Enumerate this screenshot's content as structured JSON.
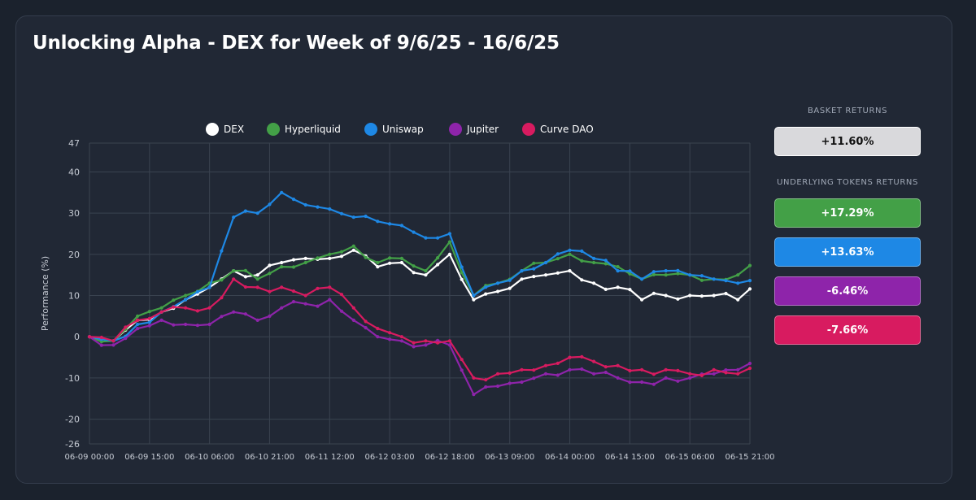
{
  "title": "Unlocking Alpha - DEX for Week of 9/6/25 - 16/6/25",
  "sidebar": {
    "basket_label": "BASKET RETURNS",
    "basket_value": "+11.60%",
    "basket_color": "#d9d9dc",
    "tokens_label": "UNDERLYING TOKENS RETURNS",
    "tokens": [
      {
        "name": "Hyperliquid",
        "value": "+17.29%",
        "color": "#43a047"
      },
      {
        "name": "Uniswap",
        "value": "+13.63%",
        "color": "#1e88e5"
      },
      {
        "name": "Jupiter",
        "value": "-6.46%",
        "color": "#8e24aa"
      },
      {
        "name": "Curve DAO",
        "value": "-7.66%",
        "color": "#d81b60"
      }
    ]
  },
  "chart_data": {
    "type": "line",
    "title": "",
    "xlabel": "",
    "ylabel": "Performance (%)",
    "ylim": [
      -26,
      47
    ],
    "yticks": [
      47,
      40,
      30,
      20,
      10,
      0,
      -10,
      -20,
      -26
    ],
    "xlim": [
      "06-09 00:00",
      "06-15 21:00"
    ],
    "xticks": [
      "06-09 00:00",
      "06-09 15:00",
      "06-10 06:00",
      "06-10 21:00",
      "06-11 12:00",
      "06-12 03:00",
      "06-12 18:00",
      "06-13 09:00",
      "06-14 00:00",
      "06-14 15:00",
      "06-15 06:00",
      "06-15 21:00"
    ],
    "x_step_hours": 3,
    "grid": true,
    "legend": "top-center",
    "x": [
      "06-09 00:00",
      "06-09 06:00",
      "06-09 12:00",
      "06-09 18:00",
      "06-10 00:00",
      "06-10 06:00",
      "06-10 12:00",
      "06-10 18:00",
      "06-11 00:00",
      "06-11 06:00",
      "06-11 12:00",
      "06-11 18:00",
      "06-12 00:00",
      "06-12 06:00",
      "06-12 12:00",
      "06-12 18:00",
      "06-13 00:00",
      "06-13 06:00",
      "06-13 12:00",
      "06-13 18:00",
      "06-14 00:00",
      "06-14 06:00",
      "06-14 12:00",
      "06-14 18:00",
      "06-15 00:00",
      "06-15 06:00",
      "06-15 12:00",
      "06-15 18:00",
      "06-15 21:00"
    ],
    "series": [
      {
        "name": "DEX",
        "color": "#ffffff",
        "values": [
          0,
          -1,
          4,
          6,
          9,
          12,
          16,
          15,
          18,
          19,
          19,
          21,
          17,
          18,
          15,
          20,
          9,
          11,
          14,
          15,
          16,
          13,
          12,
          9,
          10,
          10,
          10,
          9,
          11.6
        ]
      },
      {
        "name": "Hyperliquid",
        "color": "#43a047",
        "values": [
          0,
          -1,
          5,
          7,
          10,
          13,
          16,
          14,
          17,
          18,
          20,
          22,
          18,
          19,
          16,
          23,
          10,
          13,
          16,
          18,
          20,
          18,
          17,
          14,
          15,
          15,
          14,
          15,
          17.29
        ]
      },
      {
        "name": "Uniswap",
        "color": "#1e88e5",
        "values": [
          0,
          -1,
          3,
          6,
          9,
          12,
          29,
          30,
          35,
          32,
          31,
          29,
          28,
          27,
          24,
          25,
          10,
          13,
          16,
          18,
          21,
          19,
          16,
          14,
          16,
          15,
          14,
          13,
          13.63
        ]
      },
      {
        "name": "Jupiter",
        "color": "#8e24aa",
        "values": [
          0,
          -2,
          2,
          4,
          3,
          3,
          6,
          4,
          7,
          8,
          9,
          4,
          0,
          -1,
          -2,
          -2,
          -14,
          -12,
          -11,
          -9,
          -8,
          -9,
          -10,
          -11,
          -10,
          -10,
          -9,
          -8,
          -6.46
        ]
      },
      {
        "name": "Curve DAO",
        "color": "#d81b60",
        "values": [
          0,
          -1,
          4,
          6,
          7,
          7,
          14,
          12,
          12,
          10,
          12,
          7,
          2,
          0,
          -1,
          -1,
          -10,
          -9,
          -8,
          -7,
          -5,
          -6,
          -7,
          -8,
          -8,
          -9,
          -8,
          -9,
          -7.66
        ]
      }
    ]
  }
}
